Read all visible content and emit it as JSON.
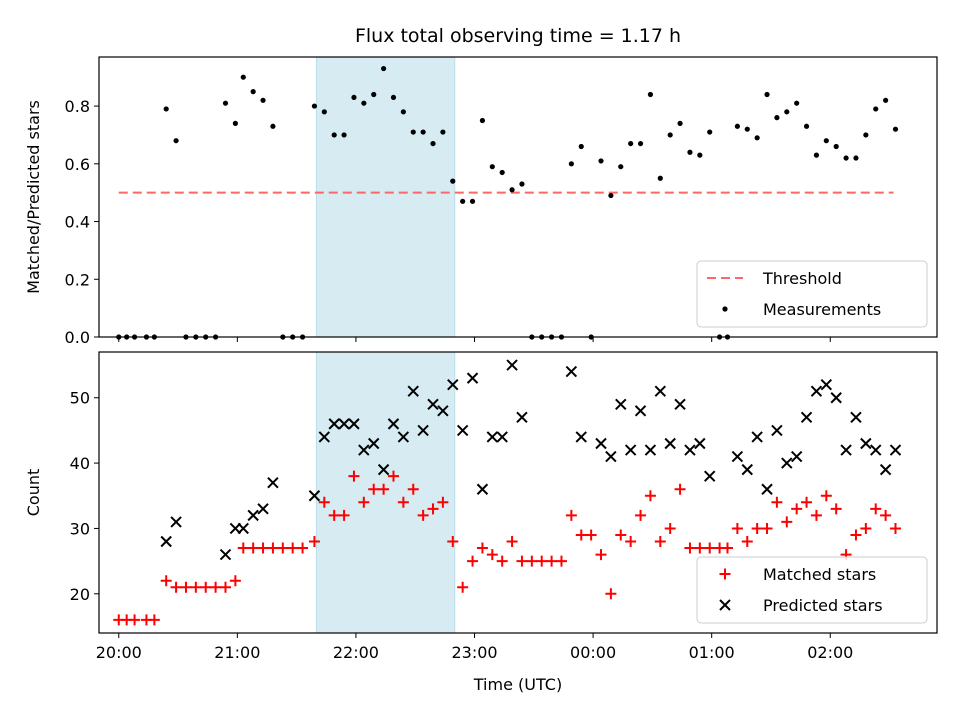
{
  "figure": {
    "title": "Flux total observing time = 1.17 h"
  },
  "chart_data": [
    {
      "type": "scatter",
      "ylabel": "Matched/Predicted stars",
      "ylim": [
        0,
        0.97
      ],
      "xlim": [
        "19:50",
        "02:54"
      ],
      "yticks": [
        "0.0",
        "0.2",
        "0.4",
        "0.6",
        "0.8"
      ],
      "grid": false,
      "legend_position": "lower right",
      "shaded_interval": {
        "start": "21:40",
        "end": "22:50",
        "color": "#add8e6"
      },
      "threshold": {
        "name": "Threshold",
        "value": 0.5,
        "x_range": [
          "20:00",
          "02:32"
        ],
        "color": "#ff6666"
      },
      "series": [
        {
          "name": "Measurements",
          "color": "#000000",
          "marker": "dot",
          "points": [
            [
              "20:00",
              0
            ],
            [
              "20:04",
              0
            ],
            [
              "20:08",
              0
            ],
            [
              "20:14",
              0
            ],
            [
              "20:18",
              0
            ],
            [
              "20:24",
              0.79
            ],
            [
              "20:29",
              0.68
            ],
            [
              "20:34",
              0
            ],
            [
              "20:39",
              0
            ],
            [
              "20:44",
              0
            ],
            [
              "20:49",
              0
            ],
            [
              "20:54",
              0.81
            ],
            [
              "20:59",
              0.74
            ],
            [
              "21:03",
              0.9
            ],
            [
              "21:08",
              0.85
            ],
            [
              "21:13",
              0.82
            ],
            [
              "21:18",
              0.73
            ],
            [
              "21:23",
              0
            ],
            [
              "21:28",
              0
            ],
            [
              "21:33",
              0
            ],
            [
              "21:39",
              0.8
            ],
            [
              "21:44",
              0.78
            ],
            [
              "21:49",
              0.7
            ],
            [
              "21:54",
              0.7
            ],
            [
              "21:59",
              0.83
            ],
            [
              "22:04",
              0.81
            ],
            [
              "22:09",
              0.84
            ],
            [
              "22:14",
              0.93
            ],
            [
              "22:19",
              0.83
            ],
            [
              "22:24",
              0.78
            ],
            [
              "22:29",
              0.71
            ],
            [
              "22:34",
              0.71
            ],
            [
              "22:39",
              0.67
            ],
            [
              "22:44",
              0.71
            ],
            [
              "22:49",
              0.54
            ],
            [
              "22:54",
              0.47
            ],
            [
              "22:59",
              0.47
            ],
            [
              "23:04",
              0.75
            ],
            [
              "23:09",
              0.59
            ],
            [
              "23:14",
              0.57
            ],
            [
              "23:19",
              0.51
            ],
            [
              "23:24",
              0.53
            ],
            [
              "23:29",
              0
            ],
            [
              "23:34",
              0
            ],
            [
              "23:39",
              0
            ],
            [
              "23:44",
              0
            ],
            [
              "23:49",
              0.6
            ],
            [
              "23:54",
              0.66
            ],
            [
              "23:59",
              0
            ],
            [
              "00:04",
              0.61
            ],
            [
              "00:09",
              0.49
            ],
            [
              "00:14",
              0.59
            ],
            [
              "00:19",
              0.67
            ],
            [
              "00:24",
              0.67
            ],
            [
              "00:29",
              0.84
            ],
            [
              "00:34",
              0.55
            ],
            [
              "00:39",
              0.7
            ],
            [
              "00:44",
              0.74
            ],
            [
              "00:49",
              0.64
            ],
            [
              "00:54",
              0.63
            ],
            [
              "00:59",
              0.71
            ],
            [
              "01:04",
              0
            ],
            [
              "01:08",
              0
            ],
            [
              "01:13",
              0.73
            ],
            [
              "01:18",
              0.72
            ],
            [
              "01:23",
              0.69
            ],
            [
              "01:28",
              0.84
            ],
            [
              "01:33",
              0.76
            ],
            [
              "01:38",
              0.78
            ],
            [
              "01:43",
              0.81
            ],
            [
              "01:48",
              0.73
            ],
            [
              "01:53",
              0.63
            ],
            [
              "01:58",
              0.68
            ],
            [
              "02:03",
              0.66
            ],
            [
              "02:08",
              0.62
            ],
            [
              "02:13",
              0.62
            ],
            [
              "02:18",
              0.7
            ],
            [
              "02:23",
              0.79
            ],
            [
              "02:28",
              0.82
            ],
            [
              "02:33",
              0.72
            ]
          ]
        }
      ]
    },
    {
      "type": "scatter",
      "xlabel": "Time (UTC)",
      "ylabel": "Count",
      "xticks": [
        "20:00",
        "21:00",
        "22:00",
        "23:00",
        "00:00",
        "01:00",
        "02:00"
      ],
      "ylim": [
        14,
        57
      ],
      "yticks": [
        "20",
        "30",
        "40",
        "50"
      ],
      "xlim": [
        "19:50",
        "02:54"
      ],
      "grid": false,
      "legend_position": "lower right",
      "shaded_interval": {
        "start": "21:40",
        "end": "22:50",
        "color": "#add8e6"
      },
      "series": [
        {
          "name": "Matched stars",
          "color": "#ff0000",
          "marker": "plus",
          "points": [
            [
              "20:00",
              16
            ],
            [
              "20:04",
              16
            ],
            [
              "20:08",
              16
            ],
            [
              "20:14",
              16
            ],
            [
              "20:18",
              16
            ],
            [
              "20:24",
              22
            ],
            [
              "20:29",
              21
            ],
            [
              "20:34",
              21
            ],
            [
              "20:39",
              21
            ],
            [
              "20:44",
              21
            ],
            [
              "20:49",
              21
            ],
            [
              "20:54",
              21
            ],
            [
              "20:59",
              22
            ],
            [
              "21:03",
              27
            ],
            [
              "21:08",
              27
            ],
            [
              "21:13",
              27
            ],
            [
              "21:18",
              27
            ],
            [
              "21:23",
              27
            ],
            [
              "21:28",
              27
            ],
            [
              "21:33",
              27
            ],
            [
              "21:39",
              28
            ],
            [
              "21:44",
              34
            ],
            [
              "21:49",
              32
            ],
            [
              "21:54",
              32
            ],
            [
              "21:59",
              38
            ],
            [
              "22:04",
              34
            ],
            [
              "22:09",
              36
            ],
            [
              "22:14",
              36
            ],
            [
              "22:19",
              38
            ],
            [
              "22:24",
              34
            ],
            [
              "22:29",
              36
            ],
            [
              "22:34",
              32
            ],
            [
              "22:39",
              33
            ],
            [
              "22:44",
              34
            ],
            [
              "22:49",
              28
            ],
            [
              "22:54",
              21
            ],
            [
              "22:59",
              25
            ],
            [
              "23:04",
              27
            ],
            [
              "23:09",
              26
            ],
            [
              "23:14",
              25
            ],
            [
              "23:19",
              28
            ],
            [
              "23:24",
              25
            ],
            [
              "23:29",
              25
            ],
            [
              "23:34",
              25
            ],
            [
              "23:39",
              25
            ],
            [
              "23:44",
              25
            ],
            [
              "23:49",
              32
            ],
            [
              "23:54",
              29
            ],
            [
              "23:59",
              29
            ],
            [
              "00:04",
              26
            ],
            [
              "00:09",
              20
            ],
            [
              "00:14",
              29
            ],
            [
              "00:19",
              28
            ],
            [
              "00:24",
              32
            ],
            [
              "00:29",
              35
            ],
            [
              "00:34",
              28
            ],
            [
              "00:39",
              30
            ],
            [
              "00:44",
              36
            ],
            [
              "00:49",
              27
            ],
            [
              "00:54",
              27
            ],
            [
              "00:59",
              27
            ],
            [
              "01:04",
              27
            ],
            [
              "01:08",
              27
            ],
            [
              "01:13",
              30
            ],
            [
              "01:18",
              28
            ],
            [
              "01:23",
              30
            ],
            [
              "01:28",
              30
            ],
            [
              "01:33",
              34
            ],
            [
              "01:38",
              31
            ],
            [
              "01:43",
              33
            ],
            [
              "01:48",
              34
            ],
            [
              "01:53",
              32
            ],
            [
              "01:58",
              35
            ],
            [
              "02:03",
              33
            ],
            [
              "02:08",
              26
            ],
            [
              "02:13",
              29
            ],
            [
              "02:18",
              30
            ],
            [
              "02:23",
              33
            ],
            [
              "02:28",
              32
            ],
            [
              "02:33",
              30
            ]
          ]
        },
        {
          "name": "Predicted stars",
          "color": "#000000",
          "marker": "x",
          "points": [
            [
              "20:24",
              28
            ],
            [
              "20:29",
              31
            ],
            [
              "20:54",
              26
            ],
            [
              "20:59",
              30
            ],
            [
              "21:03",
              30
            ],
            [
              "21:08",
              32
            ],
            [
              "21:13",
              33
            ],
            [
              "21:18",
              37
            ],
            [
              "21:39",
              35
            ],
            [
              "21:44",
              44
            ],
            [
              "21:49",
              46
            ],
            [
              "21:54",
              46
            ],
            [
              "21:59",
              46
            ],
            [
              "22:04",
              42
            ],
            [
              "22:09",
              43
            ],
            [
              "22:14",
              39
            ],
            [
              "22:19",
              46
            ],
            [
              "22:24",
              44
            ],
            [
              "22:29",
              51
            ],
            [
              "22:34",
              45
            ],
            [
              "22:39",
              49
            ],
            [
              "22:44",
              48
            ],
            [
              "22:49",
              52
            ],
            [
              "22:54",
              45
            ],
            [
              "22:59",
              53
            ],
            [
              "23:04",
              36
            ],
            [
              "23:09",
              44
            ],
            [
              "23:14",
              44
            ],
            [
              "23:19",
              55
            ],
            [
              "23:24",
              47
            ],
            [
              "23:49",
              54
            ],
            [
              "23:54",
              44
            ],
            [
              "00:04",
              43
            ],
            [
              "00:09",
              41
            ],
            [
              "00:14",
              49
            ],
            [
              "00:19",
              42
            ],
            [
              "00:24",
              48
            ],
            [
              "00:29",
              42
            ],
            [
              "00:34",
              51
            ],
            [
              "00:39",
              43
            ],
            [
              "00:44",
              49
            ],
            [
              "00:49",
              42
            ],
            [
              "00:54",
              43
            ],
            [
              "00:59",
              38
            ],
            [
              "01:13",
              41
            ],
            [
              "01:18",
              39
            ],
            [
              "01:23",
              44
            ],
            [
              "01:28",
              36
            ],
            [
              "01:33",
              45
            ],
            [
              "01:38",
              40
            ],
            [
              "01:43",
              41
            ],
            [
              "01:48",
              47
            ],
            [
              "01:53",
              51
            ],
            [
              "01:58",
              52
            ],
            [
              "02:03",
              50
            ],
            [
              "02:08",
              42
            ],
            [
              "02:13",
              47
            ],
            [
              "02:18",
              43
            ],
            [
              "02:23",
              42
            ],
            [
              "02:28",
              39
            ],
            [
              "02:33",
              42
            ]
          ]
        }
      ]
    }
  ]
}
